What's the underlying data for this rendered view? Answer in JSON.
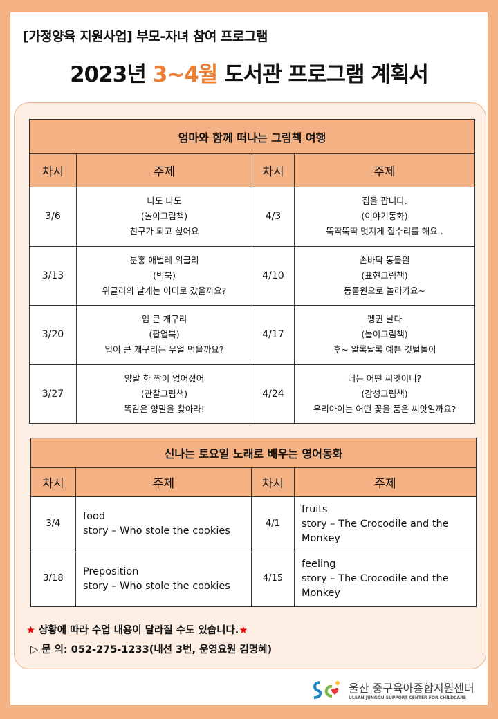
{
  "subtitle": "[가정양육 지원사업] 부모-자녀 참여 프로그램",
  "title": {
    "pre": "2023년 ",
    "accent": "3~4월",
    "post": " 도서관 프로그램 계획서",
    "accent_color": "#ed7d31"
  },
  "colors": {
    "border": "#f4b183",
    "panel": "#fdeee4"
  },
  "table1": {
    "caption": "엄마와 함께 떠나는 그림책 여행",
    "headers": [
      "차시",
      "주제",
      "차시",
      "주제"
    ],
    "rows": [
      {
        "d1": "3/6",
        "t1": [
          "나도 나도",
          "(놀이그림책)",
          "친구가 되고 싶어요"
        ],
        "d2": "4/3",
        "t2": [
          "집을 팝니다.",
          "(이야기동화)",
          "뚝딱뚝딱 멋지게 집수리를 해요 ."
        ]
      },
      {
        "d1": "3/13",
        "t1": [
          "분홍 애벌레 위글리",
          "(빅북)",
          "위글리의 날개는 어디로 갔을까요?"
        ],
        "d2": "4/10",
        "t2": [
          "손바닥 동물원",
          "(표현그림책)",
          "동물원으로 놀러가요~"
        ]
      },
      {
        "d1": "3/20",
        "t1": [
          "입 큰 개구리",
          "(팝업북)",
          "입이 큰 개구리는 무얼 먹을까요?"
        ],
        "d2": "4/17",
        "t2": [
          "펭귄 날다",
          "(놀이그림책)",
          "후~ 알록달록 예쁜 깃털놀이"
        ]
      },
      {
        "d1": "3/27",
        "t1": [
          "양말 한 짝이 없어졌어",
          "(관찰그림책)",
          "똑같은 양말을 찾아라!"
        ],
        "d2": "4/24",
        "t2": [
          "너는 어떤 씨앗이니?",
          "(감성그림책)",
          "우리아이는 어떤 꽃을 품은 씨앗일까요?"
        ]
      }
    ]
  },
  "table2": {
    "caption": "신나는 토요일 노래로 배우는 영어동화",
    "headers": [
      "차시",
      "주제",
      "차시",
      "주제"
    ],
    "rows": [
      {
        "d1": "3/4",
        "t1": [
          "food",
          "story – Who stole the cookies"
        ],
        "d2": "4/1",
        "t2": [
          "fruits",
          "story – The Crocodile and the Monkey"
        ]
      },
      {
        "d1": "3/18",
        "t1": [
          "Preposition",
          "story – Who stole the cookies"
        ],
        "d2": "4/15",
        "t2": [
          "feeling",
          "story – The Crocodile and the Monkey"
        ]
      }
    ]
  },
  "note": "상황에 따라 수업 내용이 달라질 수도 있습니다.",
  "inquiry": "▷ 문 의: 052-275-1233(내선 3번, 운영요원 김명혜)",
  "logo": {
    "kr": "울산 중구육아종합지원센터",
    "en": "ULSAN JUNGGU SUPPORT CENTER FOR CHILDCARE"
  }
}
